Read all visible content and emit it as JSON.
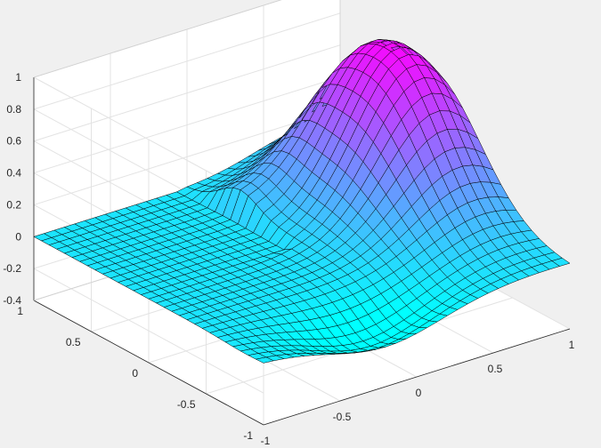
{
  "chart_data": {
    "type": "surface",
    "title": "",
    "xlabel": "",
    "ylabel": "",
    "zlabel": "",
    "xlim": [
      -1,
      1
    ],
    "ylim": [
      -1,
      1
    ],
    "zlim": [
      -0.4,
      1
    ],
    "x_ticks": [
      -1,
      -0.5,
      0,
      0.5,
      1
    ],
    "x_tick_labels": [
      "-1",
      "-0.5",
      "0",
      "0.5",
      "1"
    ],
    "y_ticks": [
      -1,
      -0.5,
      0,
      0.5,
      1
    ],
    "y_tick_labels": [
      "-1",
      "-0.5",
      "0",
      "0.5",
      "1"
    ],
    "z_ticks": [
      -0.4,
      -0.2,
      0,
      0.2,
      0.4,
      0.6,
      0.8,
      1
    ],
    "z_tick_labels": [
      "-0.4",
      "-0.2",
      "0",
      "0.2",
      "0.4",
      "0.6",
      "0.8",
      "1"
    ],
    "grid": true,
    "colormap": [
      "#00ffff",
      "#ff00ff"
    ],
    "edge_color": "#000000",
    "axes_background": "#ffffff",
    "figure_background": "#f0f0f0",
    "surface": {
      "grid_size": [
        31,
        31
      ],
      "description_values": {
        "peak": {
          "x": 0.75,
          "y": 0.2,
          "z": 0.92
        },
        "min": {
          "x": -0.15,
          "y": -1,
          "z": -0.18
        },
        "flat_region": {
          "x_range": [
            -1,
            0
          ],
          "y_range": [
            0,
            1
          ],
          "z": 0
        }
      }
    }
  }
}
